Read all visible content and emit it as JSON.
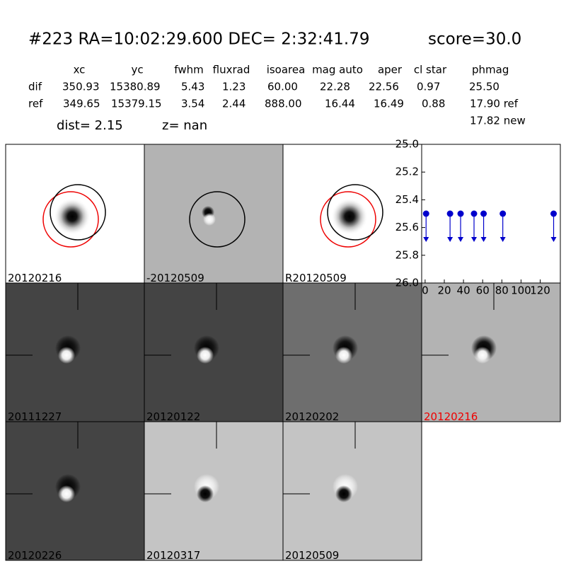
{
  "header": {
    "title": "#223   RA=10:02:29.600 DEC= 2:32:41.79",
    "score": "score=30.0"
  },
  "table": {
    "columns": [
      "xc",
      "yc",
      "fwhm",
      "fluxrad",
      "isoarea",
      "mag auto",
      "aper",
      "cl star",
      "phmag"
    ],
    "rows": [
      [
        "dif",
        "350.93",
        "15380.89",
        "5.43",
        "1.23",
        "60.00",
        "22.28",
        "22.56",
        "0.97",
        "25.50"
      ],
      [
        "ref",
        "349.65",
        "15379.15",
        "3.54",
        "2.44",
        "888.00",
        "16.44",
        "16.49",
        "0.88",
        "17.90 ref"
      ]
    ],
    "extra": "17.82 new"
  },
  "dist": "dist=  2.15",
  "z": "z=   nan",
  "panels": [
    "20120216",
    "-20120509",
    "R20120509",
    "20111227",
    "20120122",
    "20120202",
    "20120216",
    "20120226",
    "20120317",
    "20120509"
  ],
  "chart_data": {
    "type": "scatter",
    "x": [
      1,
      26,
      37,
      51,
      61,
      81,
      134
    ],
    "values": [
      25.5,
      25.5,
      25.5,
      25.5,
      25.5,
      25.5,
      25.5
    ],
    "color": "#0000cc",
    "upper_limits": true,
    "xlim": [
      -3.6,
      141
    ],
    "xticks": [
      0,
      20,
      40,
      60,
      80,
      100,
      120
    ],
    "ylim": [
      26.0,
      25.0
    ],
    "yticks": [
      {
        "value": 25.0,
        "label": "25.0"
      },
      {
        "value": 25.2,
        "label": "25.2"
      },
      {
        "value": 25.4,
        "label": "25.4"
      },
      {
        "value": 25.6,
        "label": "25.6"
      },
      {
        "value": 25.8,
        "label": "25.8"
      },
      {
        "value": 26.0,
        "label": "26.0"
      }
    ]
  }
}
